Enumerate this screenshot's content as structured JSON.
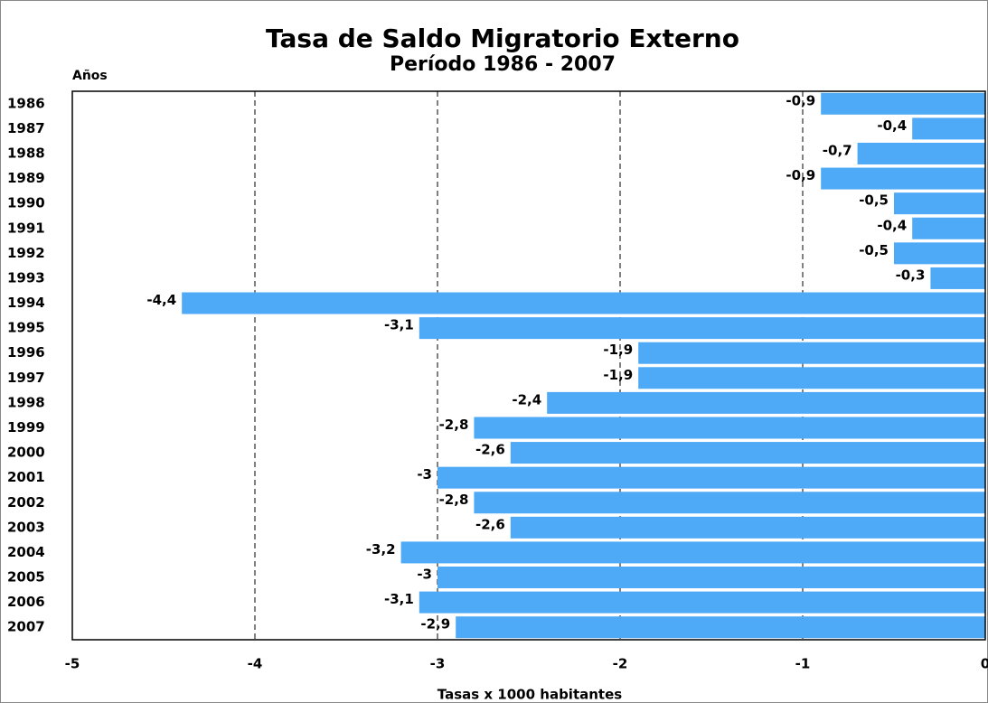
{
  "chart_data": {
    "type": "barh",
    "title": "Tasa de Saldo Migratorio Externo",
    "subtitle": "Período 1986 - 2007",
    "y_label": "Años",
    "x_label": "Tasas x 1000 habitantes",
    "categories": [
      "1986",
      "1987",
      "1988",
      "1989",
      "1990",
      "1991",
      "1992",
      "1993",
      "1994",
      "1995",
      "1996",
      "1997",
      "1998",
      "1999",
      "2000",
      "2001",
      "2002",
      "2003",
      "2004",
      "2005",
      "2006",
      "2007"
    ],
    "values": [
      -0.9,
      -0.4,
      -0.7,
      -0.9,
      -0.5,
      -0.4,
      -0.5,
      -0.3,
      -4.4,
      -3.1,
      -1.9,
      -1.9,
      -2.4,
      -2.8,
      -2.6,
      -3,
      -2.8,
      -2.6,
      -3.2,
      -3,
      -3.1,
      -2.9
    ],
    "value_labels": [
      "-0,9",
      "-0,4",
      "-0,7",
      "-0,9",
      "-0,5",
      "-0,4",
      "-0,5",
      "-0,3",
      "-4,4",
      "-3,1",
      "-1,9",
      "-1,9",
      "-2,4",
      "-2,8",
      "-2,6",
      "-3",
      "-2,8",
      "-2,6",
      "-3,2",
      "-3",
      "-3,1",
      "-2,9"
    ],
    "color": "#4ea9f7",
    "xlim": [
      -5,
      0
    ],
    "xticks": [
      -5,
      -4,
      -3,
      -2,
      -1,
      0
    ],
    "grid": true
  }
}
